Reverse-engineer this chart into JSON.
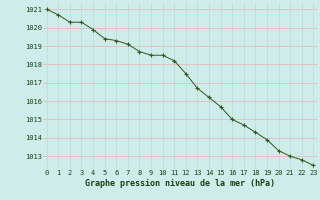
{
  "x": [
    0,
    1,
    2,
    3,
    4,
    5,
    6,
    7,
    8,
    9,
    10,
    11,
    12,
    13,
    14,
    15,
    16,
    17,
    18,
    19,
    20,
    21,
    22,
    23
  ],
  "y": [
    1021.0,
    1020.7,
    1020.3,
    1020.3,
    1019.9,
    1019.4,
    1019.3,
    1019.1,
    1018.7,
    1018.5,
    1018.5,
    1018.2,
    1017.5,
    1016.7,
    1016.2,
    1015.7,
    1015.0,
    1014.7,
    1014.3,
    1013.9,
    1013.3,
    1013.0,
    1012.8,
    1012.5
  ],
  "line_color": "#2d5a1b",
  "marker_color": "#2d5a1b",
  "bg_color": "#ceecea",
  "grid_color_h": "#e8b0b0",
  "grid_color_v": "#b8dbd8",
  "ylim_min": 1012.3,
  "ylim_max": 1021.4,
  "yticks": [
    1013,
    1014,
    1015,
    1016,
    1017,
    1018,
    1019,
    1020,
    1021
  ],
  "xticks": [
    0,
    1,
    2,
    3,
    4,
    5,
    6,
    7,
    8,
    9,
    10,
    11,
    12,
    13,
    14,
    15,
    16,
    17,
    18,
    19,
    20,
    21,
    22,
    23
  ],
  "tick_fontsize": 5.0,
  "label_fontsize": 6.0,
  "label_color": "#1a4010",
  "xlabel": "Graphe pression niveau de la mer (hPa)"
}
